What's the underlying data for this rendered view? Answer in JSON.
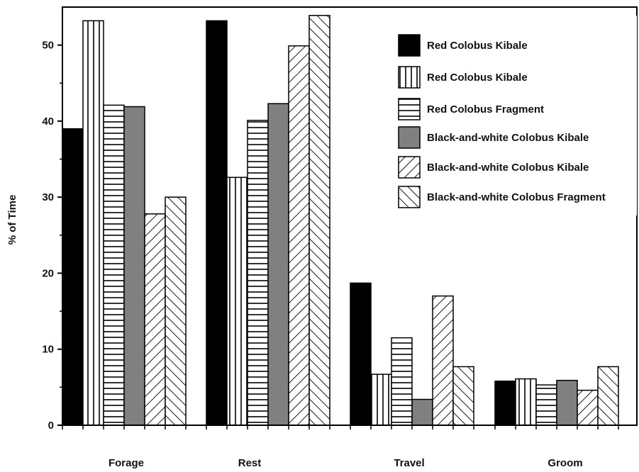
{
  "chart_data": {
    "type": "bar",
    "categories": [
      "Forage",
      "Rest",
      "Travel",
      "Groom"
    ],
    "ylabel": "% of Time",
    "xlabel": "",
    "ylim": [
      0,
      55
    ],
    "yticks": [
      0,
      10,
      20,
      30,
      40,
      50
    ],
    "grid": false,
    "legend_position": "top-right",
    "series": [
      {
        "name": "Red Colobus Kibale",
        "pattern": "solid-black",
        "values": [
          39,
          53.2,
          18.7,
          5.8
        ]
      },
      {
        "name": "Red Colobus Kibale",
        "pattern": "vertical-lines",
        "values": [
          53.2,
          32.6,
          6.7,
          6.1
        ]
      },
      {
        "name": "Red Colobus Fragment",
        "pattern": "horizontal-lines",
        "values": [
          42.1,
          40.1,
          11.5,
          5.3
        ]
      },
      {
        "name": "Black-and-white Colobus Kibale",
        "pattern": "solid-gray",
        "values": [
          41.9,
          42.3,
          3.4,
          5.9
        ]
      },
      {
        "name": "Black-and-white Colobus Kibale",
        "pattern": "diagonal-right",
        "values": [
          27.8,
          49.9,
          17.0,
          4.6
        ]
      },
      {
        "name": "Black-and-white Colobus Fragment",
        "pattern": "diagonal-left",
        "values": [
          30.0,
          53.9,
          7.7,
          7.7
        ]
      }
    ],
    "colors": {
      "solid_black": "#000000",
      "solid_gray": "#808080",
      "stroke": "#000000"
    }
  }
}
